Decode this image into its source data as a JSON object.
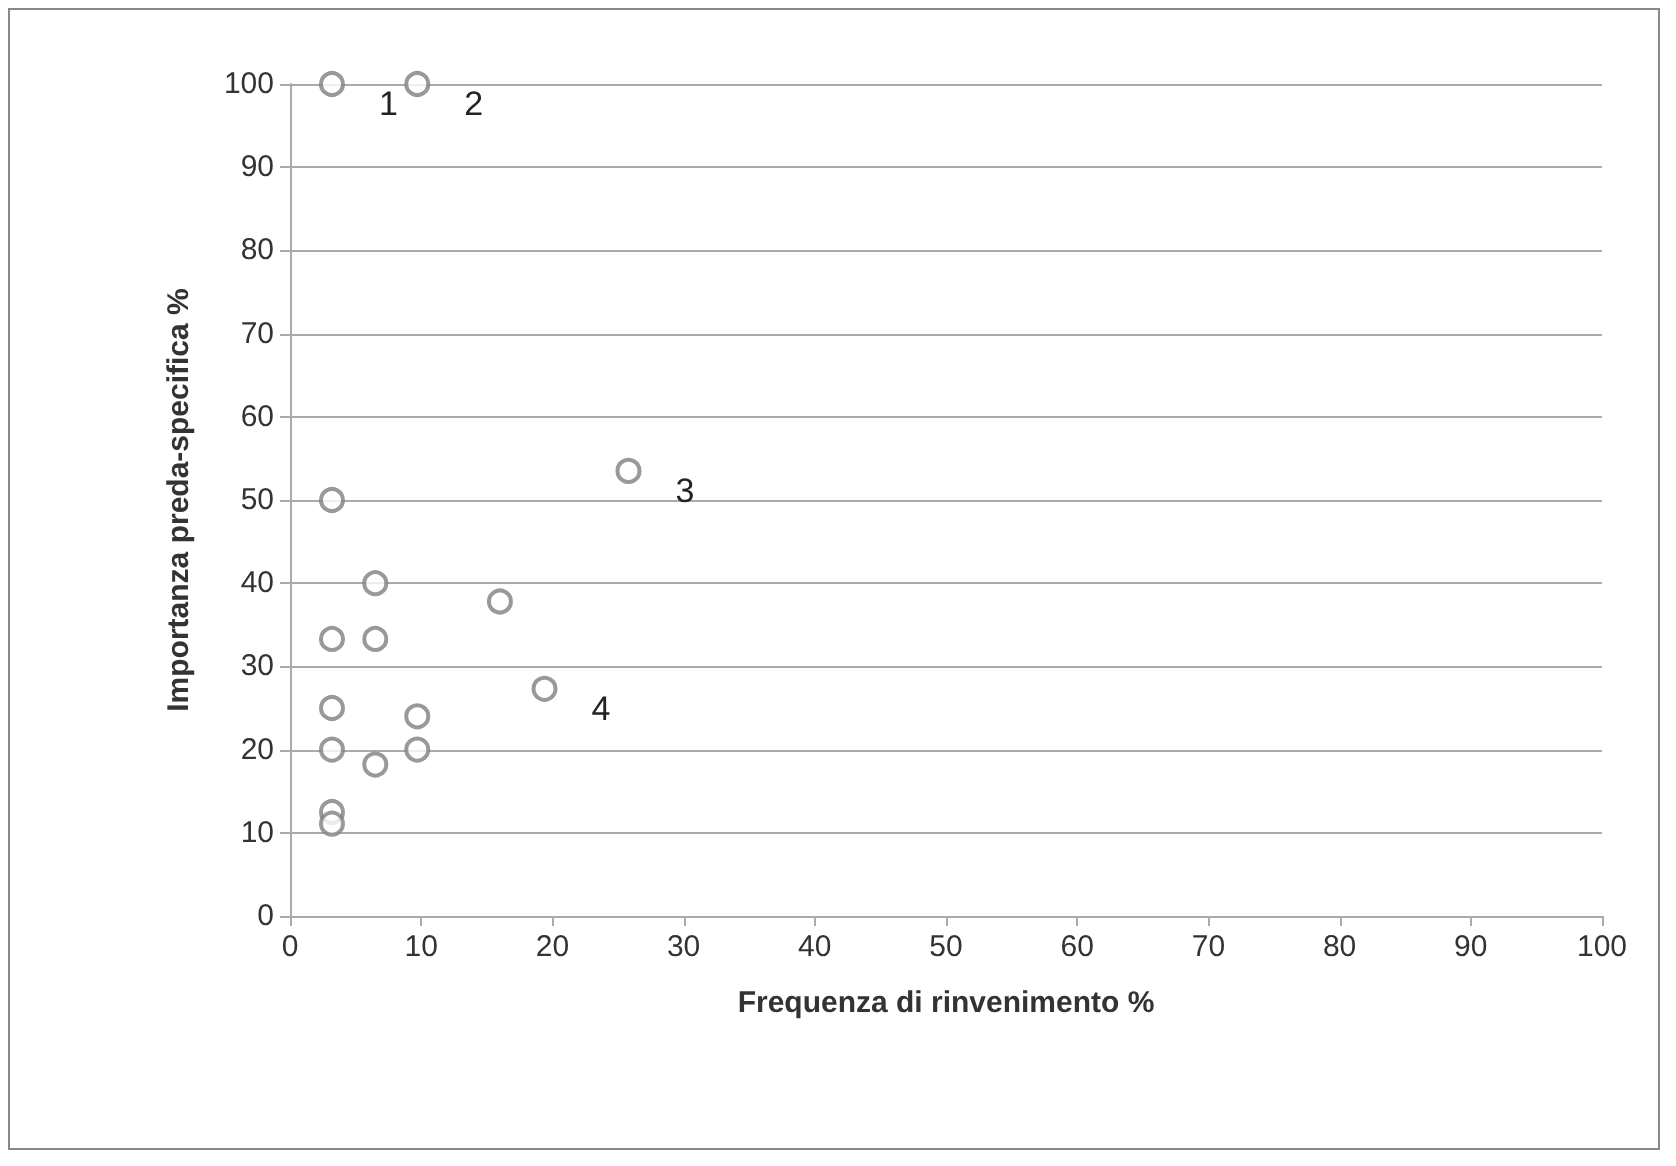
{
  "chart_data": {
    "type": "scatter",
    "xlabel": "Frequenza di rinvenimento %",
    "ylabel": "Importanza preda-specifica %",
    "x": [
      3.2,
      9.7,
      25.8,
      3.2,
      6.5,
      16,
      3.2,
      6.5,
      19.4,
      3.2,
      9.7,
      3.2,
      9.7,
      6.5,
      3.2,
      3.2
    ],
    "values": [
      100,
      100,
      53.5,
      50,
      40,
      37.8,
      33.3,
      33.3,
      27.3,
      25,
      24,
      20,
      20,
      18.2,
      12.5,
      11.1
    ],
    "color": "#7f7f7f",
    "marker": "circle",
    "xlim": [
      0,
      100
    ],
    "xticks": [
      0,
      10,
      20,
      30,
      40,
      50,
      60,
      70,
      80,
      90,
      100
    ],
    "ylim": [
      0,
      100
    ],
    "yticks": [
      0,
      10,
      20,
      30,
      40,
      50,
      60,
      70,
      80,
      90,
      100
    ],
    "grid": "y",
    "annotations": [
      {
        "text": "1",
        "x": 3.2,
        "y": 100
      },
      {
        "text": "2",
        "x": 9.7,
        "y": 100
      },
      {
        "text": "3",
        "x": 25.8,
        "y": 53.5
      },
      {
        "text": "4",
        "x": 19.4,
        "y": 27.3
      }
    ]
  }
}
